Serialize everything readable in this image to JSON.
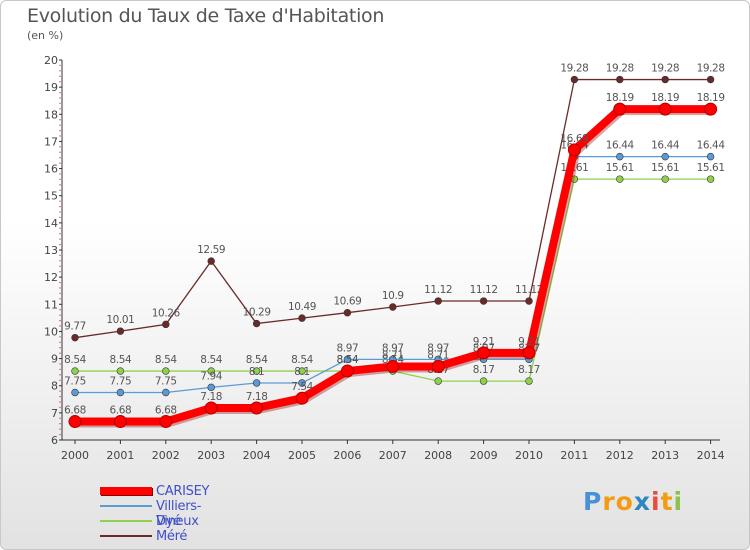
{
  "title": "Evolution du Taux de Taxe d'Habitation",
  "unit_label": "(en %)",
  "logo": {
    "text": "Proxiti",
    "letters": [
      "P",
      "r",
      "o",
      "x",
      "i",
      "t",
      "i"
    ],
    "colors": [
      "#4a90d9",
      "#f39c12",
      "#f39c12",
      "#2e86c1",
      "#e74c3c",
      "#f39c12",
      "#8bc34a"
    ]
  },
  "chart_data": {
    "type": "line",
    "categories": [
      "2000",
      "2001",
      "2002",
      "2003",
      "2004",
      "2005",
      "2006",
      "2007",
      "2008",
      "2009",
      "2010",
      "2011",
      "2012",
      "2013",
      "2014"
    ],
    "ylim": [
      6,
      20
    ],
    "yticks": [
      6,
      7,
      8,
      9,
      10,
      11,
      12,
      13,
      14,
      15,
      16,
      17,
      18,
      19,
      20
    ],
    "grid": false,
    "legend_position": "bottom-left",
    "series": [
      {
        "name": "Méré",
        "color": "#6b2a2a",
        "style": "thin",
        "values": [
          9.77,
          10.01,
          10.26,
          12.59,
          10.29,
          10.49,
          10.69,
          10.9,
          11.12,
          11.12,
          11.12,
          19.28,
          19.28,
          19.28,
          19.28
        ],
        "labels": [
          "9.77",
          "10.01",
          "10.26",
          "12.59",
          "10.29",
          "10.49",
          "10.69",
          "10.9",
          "11.12",
          "11.12",
          "11.12",
          "19.28",
          "19.28",
          "19.28",
          "19.28"
        ]
      },
      {
        "name": "Dyé",
        "color": "#8fd14f",
        "style": "thin",
        "values": [
          8.54,
          8.54,
          8.54,
          8.54,
          8.54,
          8.54,
          8.54,
          8.54,
          8.17,
          8.17,
          8.17,
          15.61,
          15.61,
          15.61,
          15.61
        ],
        "labels": [
          "8.54",
          "8.54",
          "8.54",
          "8.54",
          "8.54",
          "8.54",
          "8.54",
          "8.54",
          "8.17",
          "8.17",
          "8.17",
          "15.61",
          "15.61",
          "15.61",
          "15.61"
        ]
      },
      {
        "name": "Villiers-Vineux",
        "color": "#5b9bd5",
        "style": "thin",
        "values": [
          7.75,
          7.75,
          7.75,
          7.94,
          8.1,
          8.1,
          8.97,
          8.97,
          8.97,
          8.97,
          8.97,
          16.44,
          16.44,
          16.44,
          16.44
        ],
        "labels": [
          "7.75",
          "7.75",
          "7.75",
          "7.94",
          "8.1",
          "8.1",
          "8.97",
          "8.97",
          "8.97",
          "8.97",
          "8.97",
          "16.44",
          "16.44",
          "16.44",
          "16.44"
        ]
      },
      {
        "name": "CARISEY",
        "color": "#ff0000",
        "style": "thick",
        "values": [
          6.68,
          6.68,
          6.68,
          7.18,
          7.18,
          7.54,
          8.54,
          8.71,
          8.71,
          9.21,
          9.21,
          16.69,
          18.19,
          18.19,
          18.19
        ],
        "labels": [
          "6.68",
          "6.68",
          "6.68",
          "7.18",
          "7.18",
          "7.54",
          "8.54",
          "8.71",
          "8.71",
          "9.21",
          "9.21",
          "16.69",
          "18.19",
          "18.19",
          "18.19"
        ]
      }
    ],
    "legend_order": [
      "CARISEY",
      "Villiers-Vineux",
      "Dyé",
      "Méré"
    ]
  }
}
